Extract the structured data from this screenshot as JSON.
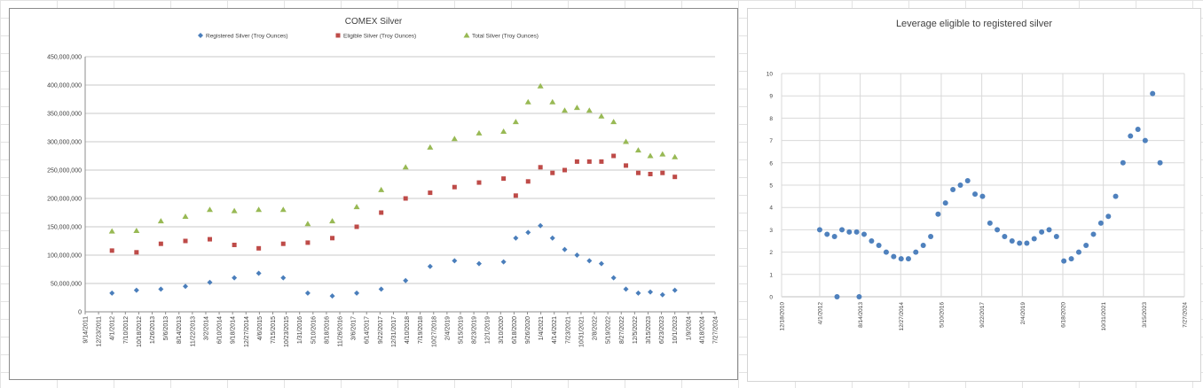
{
  "chart_data": [
    {
      "type": "scatter",
      "title": "COMEX Silver",
      "xlabel": "",
      "ylabel": "",
      "legend_position": "top",
      "ylim": [
        0,
        450000000
      ],
      "y_ticks": [
        "0",
        "50,000,000",
        "100,000,000",
        "150,000,000",
        "200,000,000",
        "250,000,000",
        "300,000,000",
        "350,000,000",
        "400,000,000",
        "450,000,000"
      ],
      "x_ticks": [
        "9/14/2011",
        "12/23/2011",
        "4/1/2012",
        "7/10/2012",
        "10/18/2012",
        "1/26/2013",
        "5/6/2013",
        "8/14/2013",
        "11/22/2013",
        "3/2/2014",
        "6/10/2014",
        "9/18/2014",
        "12/27/2014",
        "4/6/2015",
        "7/15/2015",
        "10/23/2015",
        "1/31/2016",
        "5/10/2016",
        "8/18/2016",
        "11/26/2016",
        "3/6/2017",
        "6/14/2017",
        "9/22/2017",
        "12/31/2017",
        "4/10/2018",
        "7/19/2018",
        "10/27/2018",
        "2/4/2019",
        "5/15/2019",
        "8/23/2019",
        "12/1/2019",
        "3/10/2020",
        "6/18/2020",
        "9/26/2020",
        "1/4/2021",
        "4/14/2021",
        "7/23/2021",
        "10/31/2021",
        "2/8/2022",
        "5/19/2022",
        "8/27/2022",
        "12/5/2022",
        "3/15/2023",
        "6/23/2023",
        "10/1/2023",
        "1/9/2024",
        "4/18/2024",
        "7/27/2024"
      ],
      "series": [
        {
          "name": "Registered Silver (Troy Ounces)",
          "color": "#4a7ebb",
          "marker": "diamond",
          "x": [
            "2012-04-01",
            "2012-10-01",
            "2013-04-01",
            "2013-10-01",
            "2014-04-01",
            "2014-10-01",
            "2015-04-01",
            "2015-10-01",
            "2016-04-01",
            "2016-10-01",
            "2017-04-01",
            "2017-10-01",
            "2018-04-01",
            "2018-10-01",
            "2019-04-01",
            "2019-10-01",
            "2020-04-01",
            "2020-07-01",
            "2020-10-01",
            "2021-01-01",
            "2021-04-01",
            "2021-07-01",
            "2021-10-01",
            "2022-01-01",
            "2022-04-01",
            "2022-07-01",
            "2022-10-01",
            "2023-01-01",
            "2023-04-01",
            "2023-07-01",
            "2023-10-01"
          ],
          "values": [
            33000000,
            38000000,
            40000000,
            45000000,
            52000000,
            60000000,
            68000000,
            60000000,
            33000000,
            28000000,
            33000000,
            40000000,
            55000000,
            80000000,
            90000000,
            85000000,
            88000000,
            130000000,
            140000000,
            152000000,
            130000000,
            110000000,
            100000000,
            90000000,
            85000000,
            60000000,
            40000000,
            33000000,
            35000000,
            30000000,
            38000000
          ]
        },
        {
          "name": "Eligible Silver (Troy Ounces)",
          "color": "#be4b48",
          "marker": "square",
          "x": [
            "2012-04-01",
            "2012-10-01",
            "2013-04-01",
            "2013-10-01",
            "2014-04-01",
            "2014-10-01",
            "2015-04-01",
            "2015-10-01",
            "2016-04-01",
            "2016-10-01",
            "2017-04-01",
            "2017-10-01",
            "2018-04-01",
            "2018-10-01",
            "2019-04-01",
            "2019-10-01",
            "2020-04-01",
            "2020-07-01",
            "2020-10-01",
            "2021-01-01",
            "2021-04-01",
            "2021-07-01",
            "2021-10-01",
            "2022-01-01",
            "2022-04-01",
            "2022-07-01",
            "2022-10-01",
            "2023-01-01",
            "2023-04-01",
            "2023-07-01",
            "2023-10-01"
          ],
          "values": [
            108000000,
            105000000,
            120000000,
            125000000,
            128000000,
            118000000,
            112000000,
            120000000,
            122000000,
            130000000,
            150000000,
            175000000,
            200000000,
            210000000,
            220000000,
            228000000,
            235000000,
            205000000,
            230000000,
            255000000,
            245000000,
            250000000,
            265000000,
            265000000,
            265000000,
            275000000,
            258000000,
            245000000,
            243000000,
            245000000,
            238000000
          ]
        },
        {
          "name": "Total Silver (Troy Ounces)",
          "color": "#98b954",
          "marker": "triangle",
          "x": [
            "2012-04-01",
            "2012-10-01",
            "2013-04-01",
            "2013-10-01",
            "2014-04-01",
            "2014-10-01",
            "2015-04-01",
            "2015-10-01",
            "2016-04-01",
            "2016-10-01",
            "2017-04-01",
            "2017-10-01",
            "2018-04-01",
            "2018-10-01",
            "2019-04-01",
            "2019-10-01",
            "2020-04-01",
            "2020-07-01",
            "2020-10-01",
            "2021-01-01",
            "2021-04-01",
            "2021-07-01",
            "2021-10-01",
            "2022-01-01",
            "2022-04-01",
            "2022-07-01",
            "2022-10-01",
            "2023-01-01",
            "2023-04-01",
            "2023-07-01",
            "2023-10-01"
          ],
          "values": [
            142000000,
            143000000,
            160000000,
            168000000,
            180000000,
            178000000,
            180000000,
            180000000,
            155000000,
            160000000,
            185000000,
            215000000,
            255000000,
            290000000,
            305000000,
            315000000,
            318000000,
            335000000,
            370000000,
            398000000,
            370000000,
            355000000,
            360000000,
            355000000,
            345000000,
            335000000,
            300000000,
            285000000,
            275000000,
            278000000,
            273000000
          ]
        }
      ]
    },
    {
      "type": "scatter",
      "title": "Leverage eligible to registered silver",
      "xlabel": "",
      "ylabel": "",
      "ylim": [
        0,
        10
      ],
      "y_ticks": [
        "0",
        "1",
        "2",
        "3",
        "4",
        "5",
        "6",
        "7",
        "8",
        "9",
        "10"
      ],
      "x_ticks": [
        "12/18/2010",
        "4/1/2012",
        "8/14/2013",
        "12/27/2014",
        "5/10/2016",
        "9/22/2017",
        "2/4/2019",
        "6/18/2020",
        "10/31/2021",
        "3/15/2023",
        "7/27/2024"
      ],
      "series": [
        {
          "name": "",
          "color": "#4f81bd",
          "marker": "circle",
          "x": [
            "2012-04-01",
            "2012-07-01",
            "2012-10-01",
            "2013-01-01",
            "2013-04-01",
            "2013-07-01",
            "2013-10-01",
            "2014-01-01",
            "2014-04-01",
            "2014-07-01",
            "2014-10-01",
            "2015-01-01",
            "2015-04-01",
            "2015-07-01",
            "2015-10-01",
            "2016-01-01",
            "2016-04-01",
            "2016-07-01",
            "2016-10-01",
            "2017-01-01",
            "2017-04-01",
            "2017-07-01",
            "2017-10-01",
            "2018-01-01",
            "2018-04-01",
            "2018-07-01",
            "2018-10-01",
            "2019-01-01",
            "2019-04-01",
            "2019-07-01",
            "2019-10-01",
            "2020-01-01",
            "2020-04-01",
            "2020-07-01",
            "2020-10-01",
            "2021-01-01",
            "2021-04-01",
            "2021-07-01",
            "2021-10-01",
            "2022-01-01",
            "2022-04-01",
            "2022-07-01",
            "2022-10-01",
            "2023-01-01",
            "2023-04-01",
            "2023-07-01",
            "2023-10-01",
            "2012-11-01",
            "2013-08-01"
          ],
          "values": [
            3.0,
            2.8,
            2.7,
            3.0,
            2.9,
            2.9,
            2.8,
            2.5,
            2.3,
            2.0,
            1.8,
            1.7,
            1.7,
            2.0,
            2.3,
            2.7,
            3.7,
            4.2,
            4.8,
            5.0,
            5.2,
            4.6,
            4.5,
            3.3,
            3.0,
            2.7,
            2.5,
            2.4,
            2.4,
            2.6,
            2.9,
            3.0,
            2.7,
            1.6,
            1.7,
            2.0,
            2.3,
            2.8,
            3.3,
            3.6,
            4.5,
            6.0,
            7.2,
            7.5,
            7.0,
            9.1,
            6.0,
            0.0,
            0.0
          ]
        }
      ]
    }
  ]
}
